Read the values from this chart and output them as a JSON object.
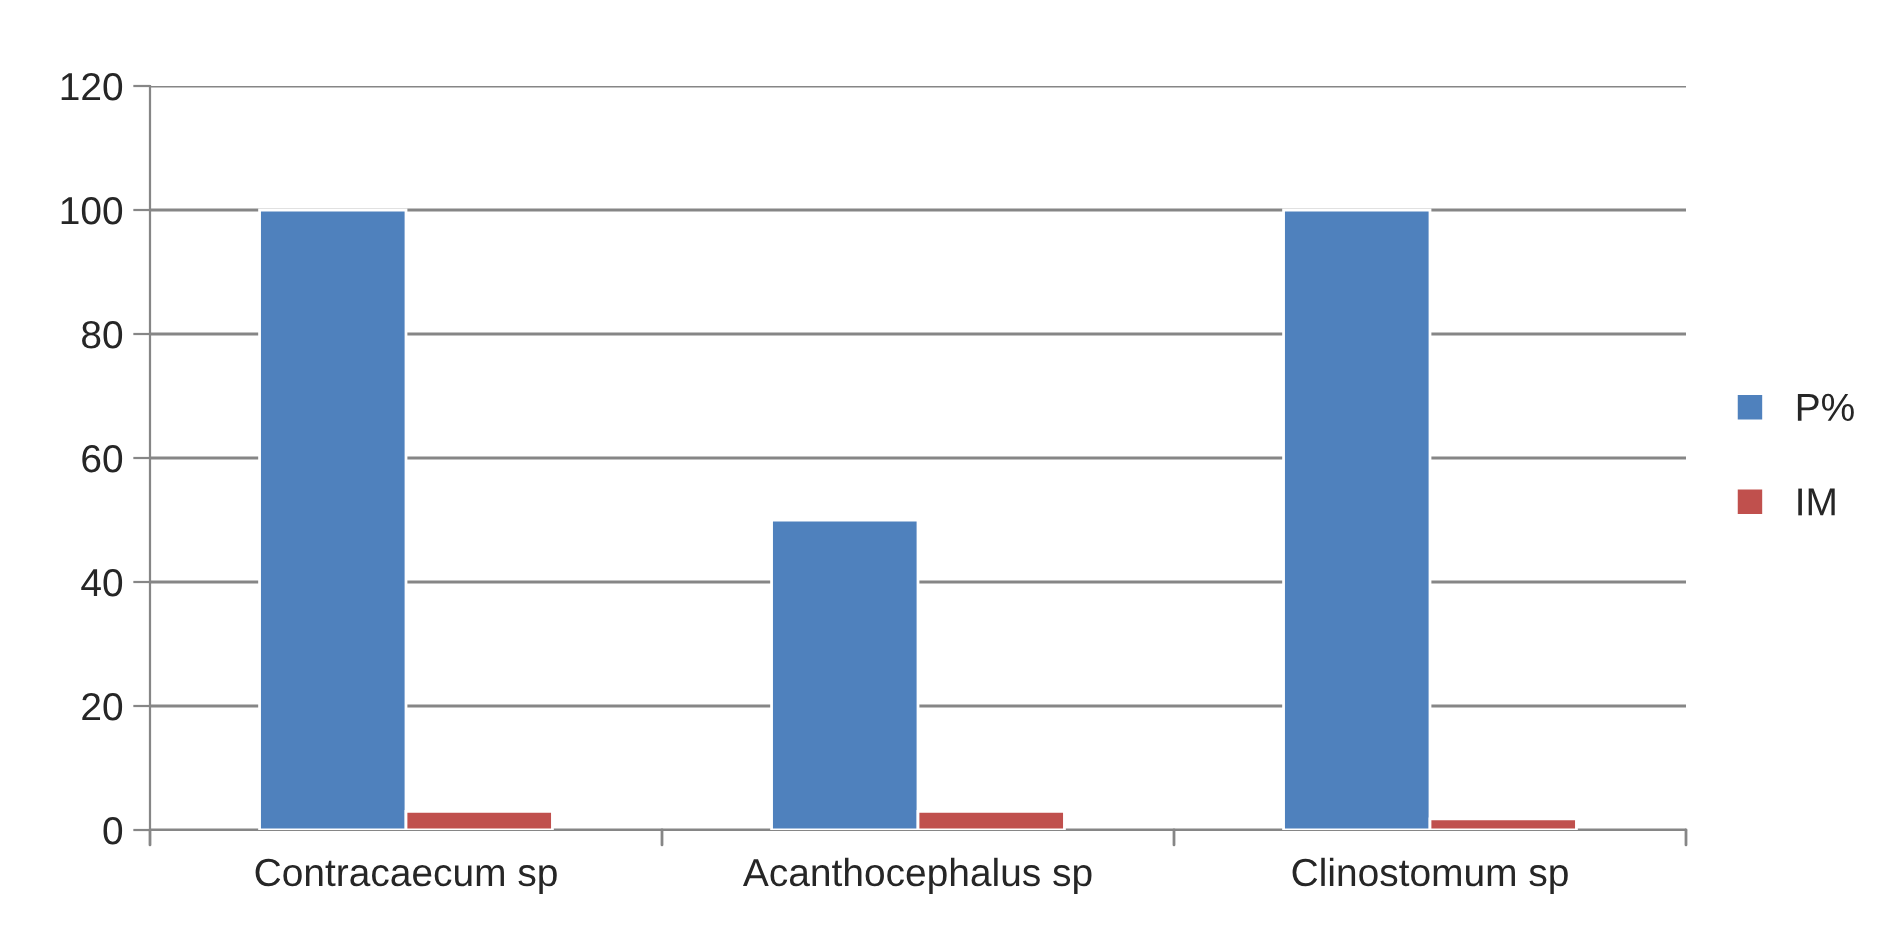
{
  "chart_data": {
    "type": "bar",
    "categories": [
      "Contracaecum sp",
      "Acanthocephalus sp",
      "Clinostomum sp"
    ],
    "series": [
      {
        "name": "P%",
        "color": "#4f81bd",
        "values": [
          100,
          50,
          100
        ]
      },
      {
        "name": "IM",
        "color": "#c0504d",
        "values": [
          3,
          3,
          1.8
        ]
      }
    ],
    "ylim": [
      0,
      120
    ],
    "yticks": [
      0,
      20,
      40,
      60,
      80,
      100,
      120
    ],
    "grid": "y",
    "legend": "right"
  }
}
